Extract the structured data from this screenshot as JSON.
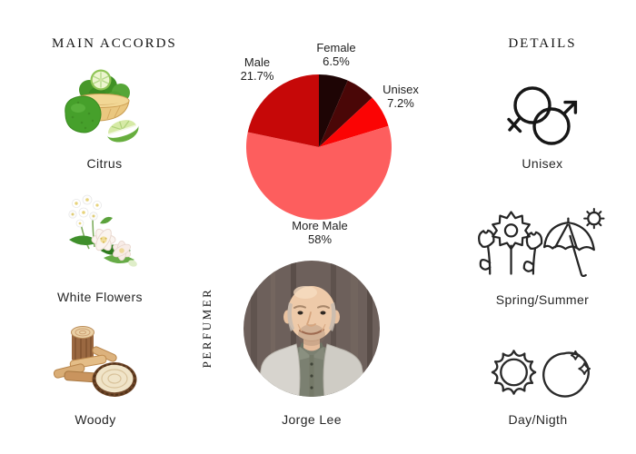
{
  "colors": {
    "background": "#ffffff",
    "text": "#1c1c1c"
  },
  "main_accords": {
    "title": "MAIN ACCORDS",
    "items": [
      {
        "label": "Citrus",
        "icon": "bergamot-basket-image"
      },
      {
        "label": "White Flowers",
        "icon": "jasmine-flowers-image"
      },
      {
        "label": "Woody",
        "icon": "wood-chips-image"
      }
    ]
  },
  "details": {
    "title": "DETAILS",
    "items": [
      {
        "label": "Unisex",
        "icon": "unisex-gender-icon"
      },
      {
        "label": "Spring/Summer",
        "icon": "spring-summer-icon"
      },
      {
        "label": "Day/Nigth",
        "icon": "day-night-icon"
      }
    ]
  },
  "perfumer": {
    "section_label": "PERFUMER",
    "name": "Jorge Lee",
    "photo": "jorge-lee-portrait"
  },
  "chart_data": {
    "type": "pie",
    "start_angle_deg": 0,
    "direction": "clockwise",
    "legend_position": "callout-labels",
    "slices": [
      {
        "label": "Female",
        "pct_text": "6.5%",
        "value": 6.5,
        "color": "#1e0505"
      },
      {
        "label": "",
        "pct_text": "",
        "value": 6.6,
        "color": "#4a0707"
      },
      {
        "label": "Unisex",
        "pct_text": "7.2%",
        "value": 7.2,
        "color": "#fb0404"
      },
      {
        "label": "More Male",
        "pct_text": "58%",
        "value": 58,
        "color": "#fd5e5e"
      },
      {
        "label": "Male",
        "pct_text": "21.7%",
        "value": 21.7,
        "color": "#c60808"
      }
    ]
  }
}
